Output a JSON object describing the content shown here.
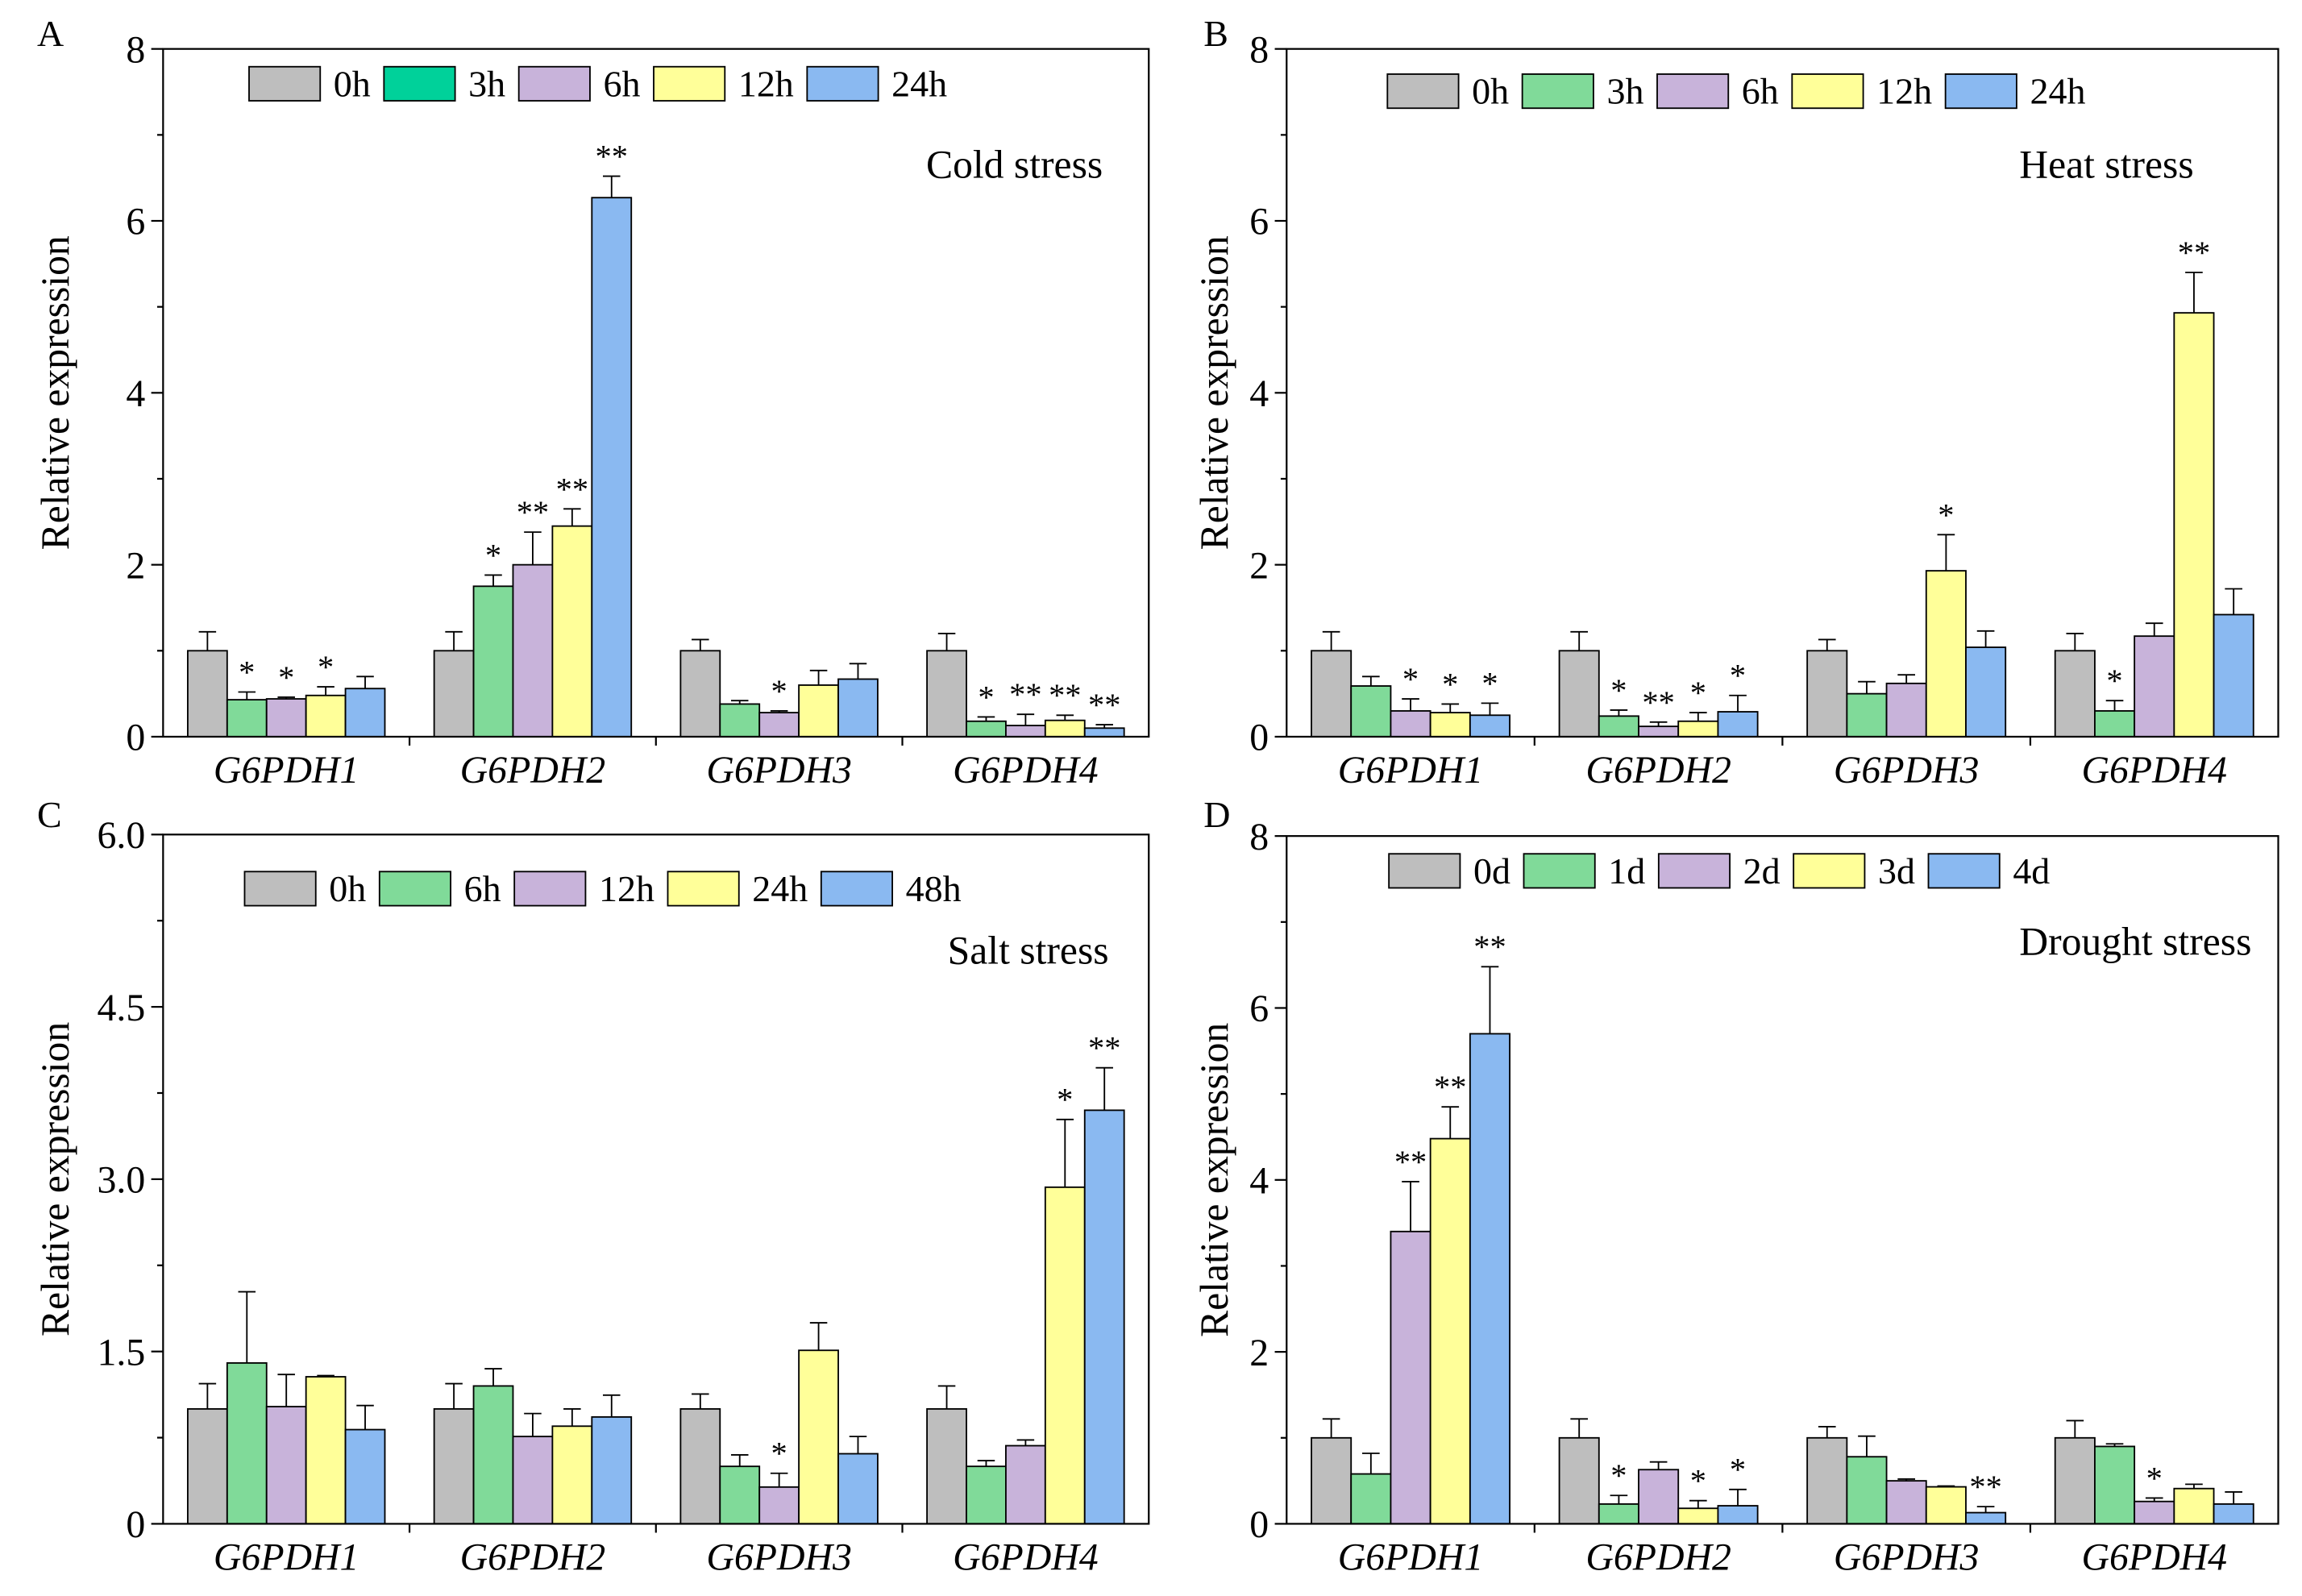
{
  "chart_data": [
    {
      "panel": "A",
      "type": "bar",
      "title": "Cold stress",
      "xlabel": "",
      "ylabel": "Relative expression",
      "ylim": [
        0,
        8
      ],
      "yticks": [
        0,
        2,
        4,
        6,
        8
      ],
      "ytick_labels": [
        "0",
        "2",
        "4",
        "6",
        "8"
      ],
      "categories": [
        "G6PDH1",
        "G6PDH2",
        "G6PDH3",
        "G6PDH4"
      ],
      "legend_position": "top-left",
      "series": [
        {
          "name": "0h",
          "color": "#BEBEBE",
          "legend_color": "#BEBEBE",
          "values": [
            1.0,
            1.0,
            1.0,
            1.0
          ],
          "errors": [
            0.22,
            0.22,
            0.13,
            0.2
          ],
          "significance": [
            "",
            "",
            "",
            ""
          ]
        },
        {
          "name": "3h",
          "color": "#80DA99",
          "legend_color": "#00D19A",
          "values": [
            0.43,
            1.75,
            0.38,
            0.18
          ],
          "errors": [
            0.09,
            0.13,
            0.04,
            0.05
          ],
          "significance": [
            "*",
            "*",
            "",
            "*"
          ]
        },
        {
          "name": "6h",
          "color": "#C8B3DA",
          "legend_color": "#C8B3DA",
          "values": [
            0.44,
            2.0,
            0.28,
            0.13
          ],
          "errors": [
            0.02,
            0.38,
            0.02,
            0.13
          ],
          "significance": [
            "*",
            "**",
            "*",
            "**"
          ]
        },
        {
          "name": "12h",
          "color": "#FFFF99",
          "legend_color": "#FFFF99",
          "values": [
            0.48,
            2.45,
            0.6,
            0.19
          ],
          "errors": [
            0.1,
            0.2,
            0.17,
            0.06
          ],
          "significance": [
            "*",
            "**",
            "",
            "**"
          ]
        },
        {
          "name": "24h",
          "color": "#8AB9F1",
          "legend_color": "#8AB9F1",
          "values": [
            0.56,
            6.27,
            0.67,
            0.1
          ],
          "errors": [
            0.14,
            0.25,
            0.18,
            0.04
          ],
          "significance": [
            "",
            "**",
            "",
            "**"
          ]
        }
      ]
    },
    {
      "panel": "B",
      "type": "bar",
      "title": "Heat stress",
      "xlabel": "",
      "ylabel": "Relative expression",
      "ylim": [
        0,
        8
      ],
      "yticks": [
        0,
        2,
        4,
        6,
        8
      ],
      "ytick_labels": [
        "0",
        "2",
        "4",
        "6",
        "8"
      ],
      "categories": [
        "G6PDH1",
        "G6PDH2",
        "G6PDH3",
        "G6PDH4"
      ],
      "legend_position": "top-left",
      "series": [
        {
          "name": "0h",
          "color": "#BEBEBE",
          "legend_color": "#BEBEBE",
          "values": [
            1.0,
            1.0,
            1.0,
            1.0
          ],
          "errors": [
            0.22,
            0.22,
            0.13,
            0.2
          ],
          "significance": [
            "",
            "",
            "",
            ""
          ]
        },
        {
          "name": "3h",
          "color": "#80DA99",
          "legend_color": "#80DA99",
          "values": [
            0.59,
            0.24,
            0.5,
            0.3
          ],
          "errors": [
            0.11,
            0.07,
            0.14,
            0.12
          ],
          "significance": [
            "",
            "*",
            "",
            "*"
          ]
        },
        {
          "name": "6h",
          "color": "#C8B3DA",
          "legend_color": "#C8B3DA",
          "values": [
            0.3,
            0.12,
            0.62,
            1.17
          ],
          "errors": [
            0.14,
            0.05,
            0.1,
            0.15
          ],
          "significance": [
            "*",
            "**",
            "",
            ""
          ]
        },
        {
          "name": "12h",
          "color": "#FFFF99",
          "legend_color": "#FFFF99",
          "values": [
            0.28,
            0.18,
            1.93,
            4.93
          ],
          "errors": [
            0.1,
            0.1,
            0.42,
            0.47
          ],
          "significance": [
            "*",
            "*",
            "*",
            "**"
          ]
        },
        {
          "name": "24h",
          "color": "#8AB9F1",
          "legend_color": "#8AB9F1",
          "values": [
            0.25,
            0.29,
            1.04,
            1.42
          ],
          "errors": [
            0.14,
            0.19,
            0.19,
            0.3
          ],
          "significance": [
            "*",
            "*",
            "",
            ""
          ]
        }
      ]
    },
    {
      "panel": "C",
      "type": "bar",
      "title": "Salt stress",
      "xlabel": "",
      "ylabel": "Relative expression",
      "ylim": [
        0,
        6
      ],
      "yticks": [
        0,
        1.5,
        3.0,
        4.5,
        6.0
      ],
      "ytick_labels": [
        "0",
        "1.5",
        "3.0",
        "4.5",
        "6.0"
      ],
      "categories": [
        "G6PDH1",
        "G6PDH2",
        "G6PDH3",
        "G6PDH4"
      ],
      "legend_position": "top-left",
      "series": [
        {
          "name": "0h",
          "color": "#BEBEBE",
          "legend_color": "#BEBEBE",
          "values": [
            1.0,
            1.0,
            1.0,
            1.0
          ],
          "errors": [
            0.22,
            0.22,
            0.13,
            0.2
          ],
          "significance": [
            "",
            "",
            "",
            ""
          ]
        },
        {
          "name": "6h",
          "color": "#80DA99",
          "legend_color": "#80DA99",
          "values": [
            1.4,
            1.2,
            0.5,
            0.5
          ],
          "errors": [
            0.62,
            0.15,
            0.1,
            0.05
          ],
          "significance": [
            "",
            "",
            "",
            ""
          ]
        },
        {
          "name": "12h",
          "color": "#C8B3DA",
          "legend_color": "#C8B3DA",
          "values": [
            1.02,
            0.76,
            0.32,
            0.68
          ],
          "errors": [
            0.28,
            0.2,
            0.12,
            0.05
          ],
          "significance": [
            "",
            "",
            "*",
            ""
          ]
        },
        {
          "name": "24h",
          "color": "#FFFF99",
          "legend_color": "#FFFF99",
          "values": [
            1.28,
            0.85,
            1.51,
            2.93
          ],
          "errors": [
            0.01,
            0.15,
            0.24,
            0.59
          ],
          "significance": [
            "",
            "",
            "",
            "*"
          ]
        },
        {
          "name": "48h",
          "color": "#8AB9F1",
          "legend_color": "#8AB9F1",
          "values": [
            0.82,
            0.93,
            0.61,
            3.6
          ],
          "errors": [
            0.21,
            0.19,
            0.15,
            0.37
          ],
          "significance": [
            "",
            "",
            "",
            "**"
          ]
        }
      ]
    },
    {
      "panel": "D",
      "type": "bar",
      "title": "Drought stress",
      "xlabel": "",
      "ylabel": "Relative expression",
      "ylim": [
        0,
        8
      ],
      "yticks": [
        0,
        2,
        4,
        6,
        8
      ],
      "ytick_labels": [
        "0",
        "2",
        "4",
        "6",
        "8"
      ],
      "categories": [
        "G6PDH1",
        "G6PDH2",
        "G6PDH3",
        "G6PDH4"
      ],
      "legend_position": "top-left",
      "series": [
        {
          "name": "0d",
          "color": "#BEBEBE",
          "legend_color": "#BEBEBE",
          "values": [
            1.0,
            1.0,
            1.0,
            1.0
          ],
          "errors": [
            0.22,
            0.22,
            0.13,
            0.2
          ],
          "significance": [
            "",
            "",
            "",
            ""
          ]
        },
        {
          "name": "1d",
          "color": "#80DA99",
          "legend_color": "#80DA99",
          "values": [
            0.58,
            0.23,
            0.78,
            0.9
          ],
          "errors": [
            0.24,
            0.1,
            0.24,
            0.03
          ],
          "significance": [
            "",
            "*",
            "",
            ""
          ]
        },
        {
          "name": "2d",
          "color": "#C8B3DA",
          "legend_color": "#C8B3DA",
          "values": [
            3.4,
            0.63,
            0.5,
            0.26
          ],
          "errors": [
            0.58,
            0.09,
            0.02,
            0.04
          ],
          "significance": [
            "**",
            "",
            "",
            "*"
          ]
        },
        {
          "name": "3d",
          "color": "#FFFF99",
          "legend_color": "#FFFF99",
          "values": [
            4.48,
            0.18,
            0.43,
            0.41
          ],
          "errors": [
            0.37,
            0.09,
            0.01,
            0.05
          ],
          "significance": [
            "**",
            "*",
            "",
            ""
          ]
        },
        {
          "name": "4d",
          "color": "#8AB9F1",
          "legend_color": "#8AB9F1",
          "values": [
            5.7,
            0.21,
            0.13,
            0.23
          ],
          "errors": [
            0.78,
            0.19,
            0.07,
            0.14
          ],
          "significance": [
            "**",
            "*",
            "**",
            ""
          ]
        }
      ]
    }
  ]
}
